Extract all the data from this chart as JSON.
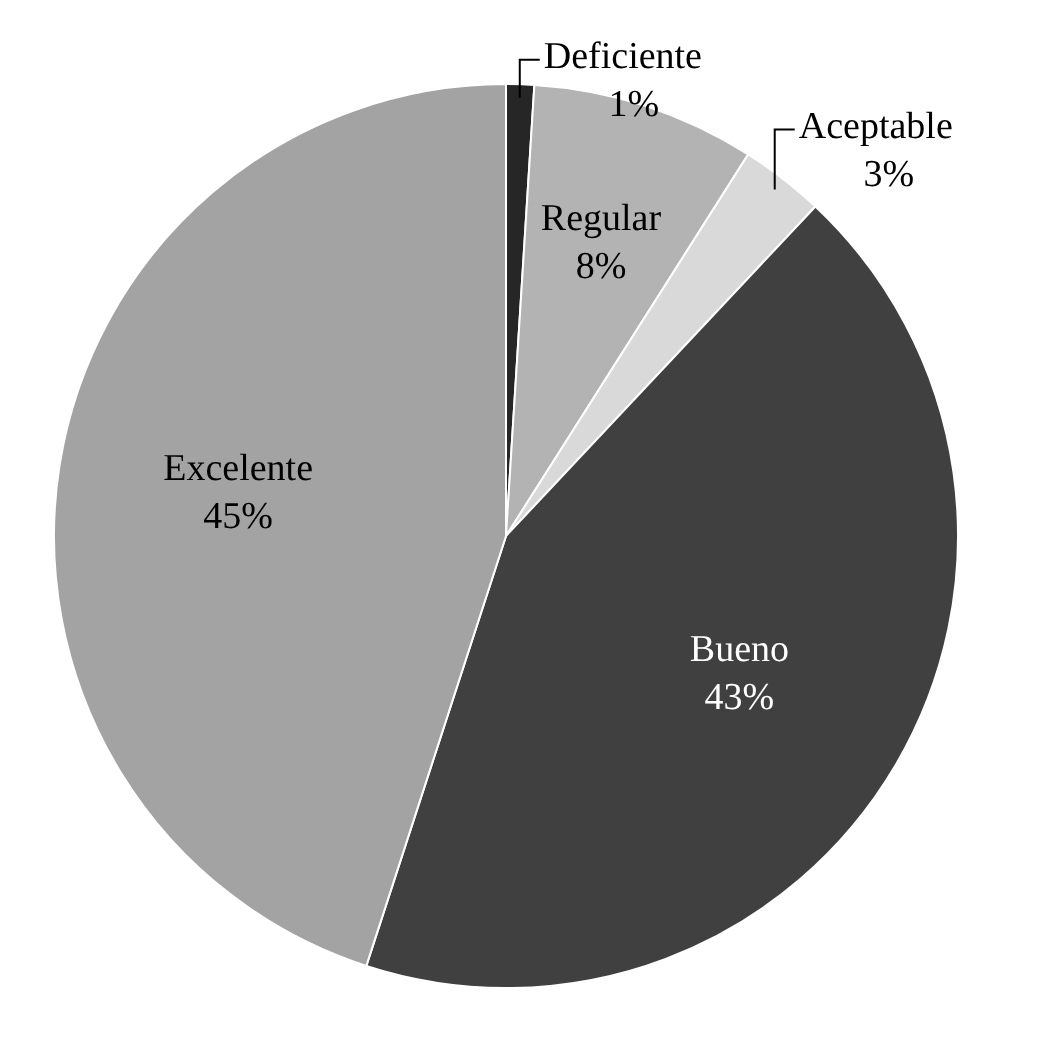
{
  "chart_data": {
    "type": "pie",
    "categories": [
      "Deficiente",
      "Regular",
      "Aceptable",
      "Bueno",
      "Excelente"
    ],
    "values": [
      1,
      8,
      3,
      43,
      45
    ],
    "value_labels": [
      "1%",
      "8%",
      "3%",
      "43%",
      "45%"
    ],
    "colors": [
      "#262626",
      "#b3b3b3",
      "#d9d9d9",
      "#404040",
      "#a3a3a3"
    ],
    "legend": false
  }
}
